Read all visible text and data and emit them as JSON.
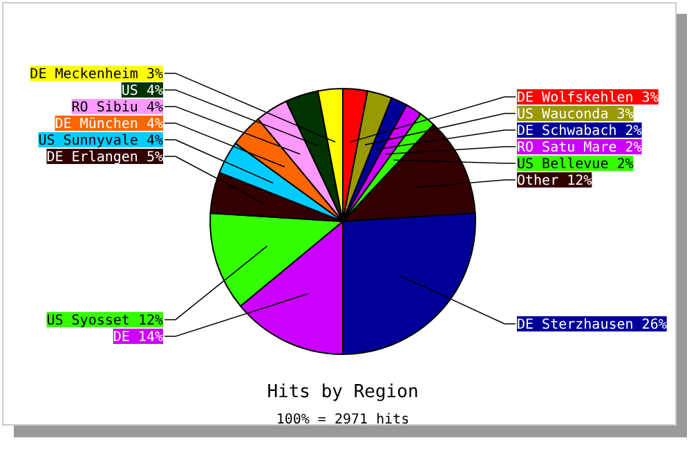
{
  "chart_data": {
    "type": "pie",
    "title": "Hits by Region",
    "subtitle": "100% = 2971 hits",
    "categories": [
      "DE Wolfskehlen",
      "US Wauconda",
      "DE Schwabach",
      "RO Satu Mare",
      "US Bellevue",
      "Other",
      "DE Sterzhausen",
      "DE",
      "US Syosset",
      "DE Erlangen",
      "US Sunnyvale",
      "DE München",
      "RO Sibiu",
      "US",
      "DE Meckenheim"
    ],
    "values": [
      3,
      3,
      2,
      2,
      2,
      12,
      26,
      14,
      12,
      5,
      4,
      4,
      4,
      4,
      3
    ],
    "value_labels": [
      "3%",
      "3%",
      "2%",
      "2%",
      "2%",
      "12%",
      "26%",
      "14%",
      "12%",
      "5%",
      "4%",
      "4%",
      "4%",
      "4%",
      "3%"
    ],
    "colors": [
      "#ff0000",
      "#999900",
      "#000099",
      "#cc00ff",
      "#33ff00",
      "#330000",
      "#000099",
      "#cc00ff",
      "#33ff00",
      "#330000",
      "#00ccff",
      "#ff6600",
      "#ff99ff",
      "#003300",
      "#ffff00"
    ]
  }
}
